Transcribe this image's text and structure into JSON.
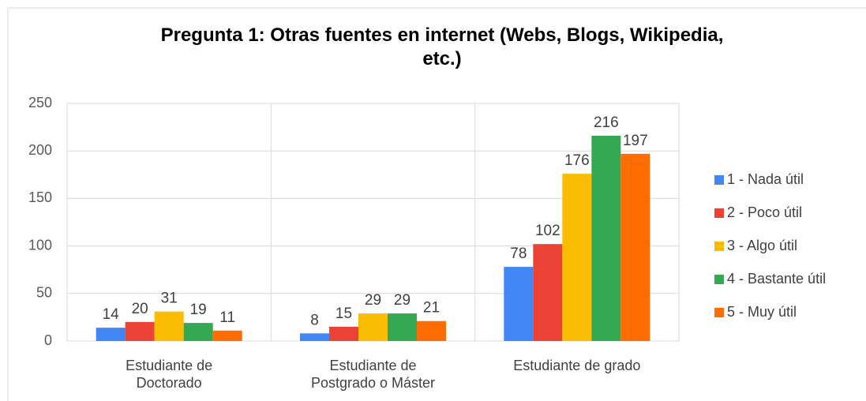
{
  "chart_data": {
    "type": "bar",
    "title": "Pregunta 1: Otras fuentes en internet (Webs, Blogs, Wikipedia, etc.)",
    "categories": [
      "Estudiante de Doctorado",
      "Estudiante de Postgrado o Máster",
      "Estudiante de grado"
    ],
    "series": [
      {
        "name": "1 - Nada útil",
        "color": "#4285f4",
        "values": [
          14,
          8,
          78
        ]
      },
      {
        "name": "2 - Poco útil",
        "color": "#ea4335",
        "values": [
          20,
          15,
          102
        ]
      },
      {
        "name": "3 - Algo útil",
        "color": "#fbbc04",
        "values": [
          31,
          29,
          176
        ]
      },
      {
        "name": "4 - Bastante útil",
        "color": "#34a853",
        "values": [
          19,
          29,
          216
        ]
      },
      {
        "name": "5 - Muy útil",
        "color": "#ff6d01",
        "values": [
          11,
          21,
          197
        ]
      }
    ],
    "ylim": [
      0,
      250
    ],
    "yticks": [
      0,
      50,
      100,
      150,
      200,
      250
    ],
    "grid": true,
    "legend": "right"
  }
}
